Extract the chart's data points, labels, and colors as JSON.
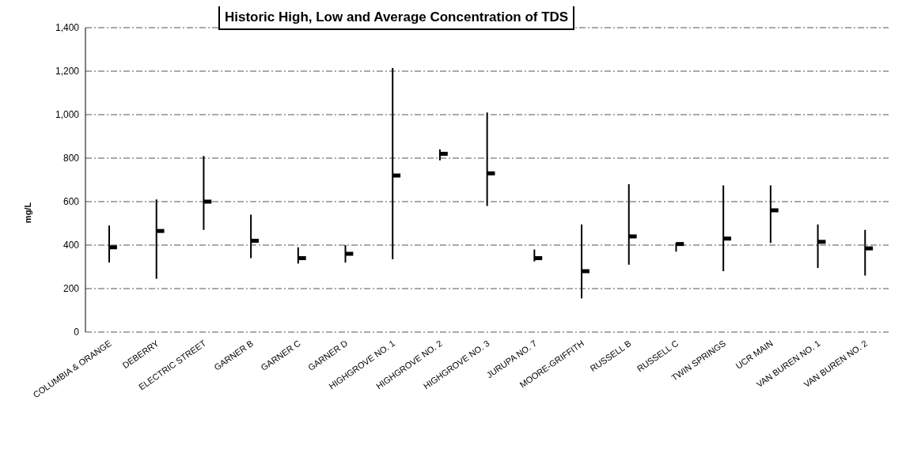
{
  "chart_data": {
    "type": "bar",
    "title": "Historic High, Low and Average Concentration of TDS",
    "ylabel": "mg/L",
    "categories": [
      "COLUMBIA & ORANGE",
      "DEBERRY",
      "ELECTRIC STREET",
      "GARNER B",
      "GARNER C",
      "GARNER D",
      "HIGHGROVE NO. 1",
      "HIGHGROVE NO. 2",
      "HIGHGROVE NO. 3",
      "JURUPA NO. 7",
      "MOORE-GRIFFITH",
      "RUSSELL B",
      "RUSSELL C",
      "TWIN SPRINGS",
      "UCR MAIN",
      "VAN BUREN NO. 1",
      "VAN BUREN NO. 2"
    ],
    "series": [
      {
        "color": "#000000",
        "base": [
          320,
          245,
          470,
          340,
          315,
          320,
          335,
          790,
          580,
          325,
          155,
          310,
          370,
          280,
          410,
          295,
          260
        ],
        "values": [
          170,
          365,
          340,
          200,
          75,
          80,
          880,
          50,
          430,
          55,
          340,
          370,
          40,
          395,
          265,
          200,
          210
        ]
      },
      {
        "type": "scatter",
        "color": "#000000",
        "marker": "square",
        "x": [
          "COLUMBIA & ORANGE",
          "DEBERRY",
          "ELECTRIC STREET",
          "GARNER B",
          "GARNER C",
          "GARNER D",
          "HIGHGROVE NO. 1",
          "HIGHGROVE NO. 2",
          "HIGHGROVE NO. 3",
          "JURUPA NO. 7",
          "MOORE-GRIFFITH",
          "RUSSELL B",
          "RUSSELL C",
          "TWIN SPRINGS",
          "UCR MAIN",
          "VAN BUREN NO. 1",
          "VAN BUREN NO. 2"
        ],
        "values": [
          390,
          465,
          600,
          420,
          340,
          360,
          720,
          820,
          730,
          340,
          280,
          440,
          405,
          430,
          560,
          415,
          385
        ]
      }
    ],
    "ylim": [
      0,
      1400
    ],
    "yticks": [
      {
        "value": 0,
        "label": "0"
      },
      {
        "value": 200,
        "label": "200"
      },
      {
        "value": 400,
        "label": "400"
      },
      {
        "value": 600,
        "label": "600"
      },
      {
        "value": 800,
        "label": "800"
      },
      {
        "value": 1000,
        "label": "1,000"
      },
      {
        "value": 1200,
        "label": "1,200"
      },
      {
        "value": 1400,
        "label": "1,400"
      }
    ],
    "grid": "y",
    "legend": false
  }
}
